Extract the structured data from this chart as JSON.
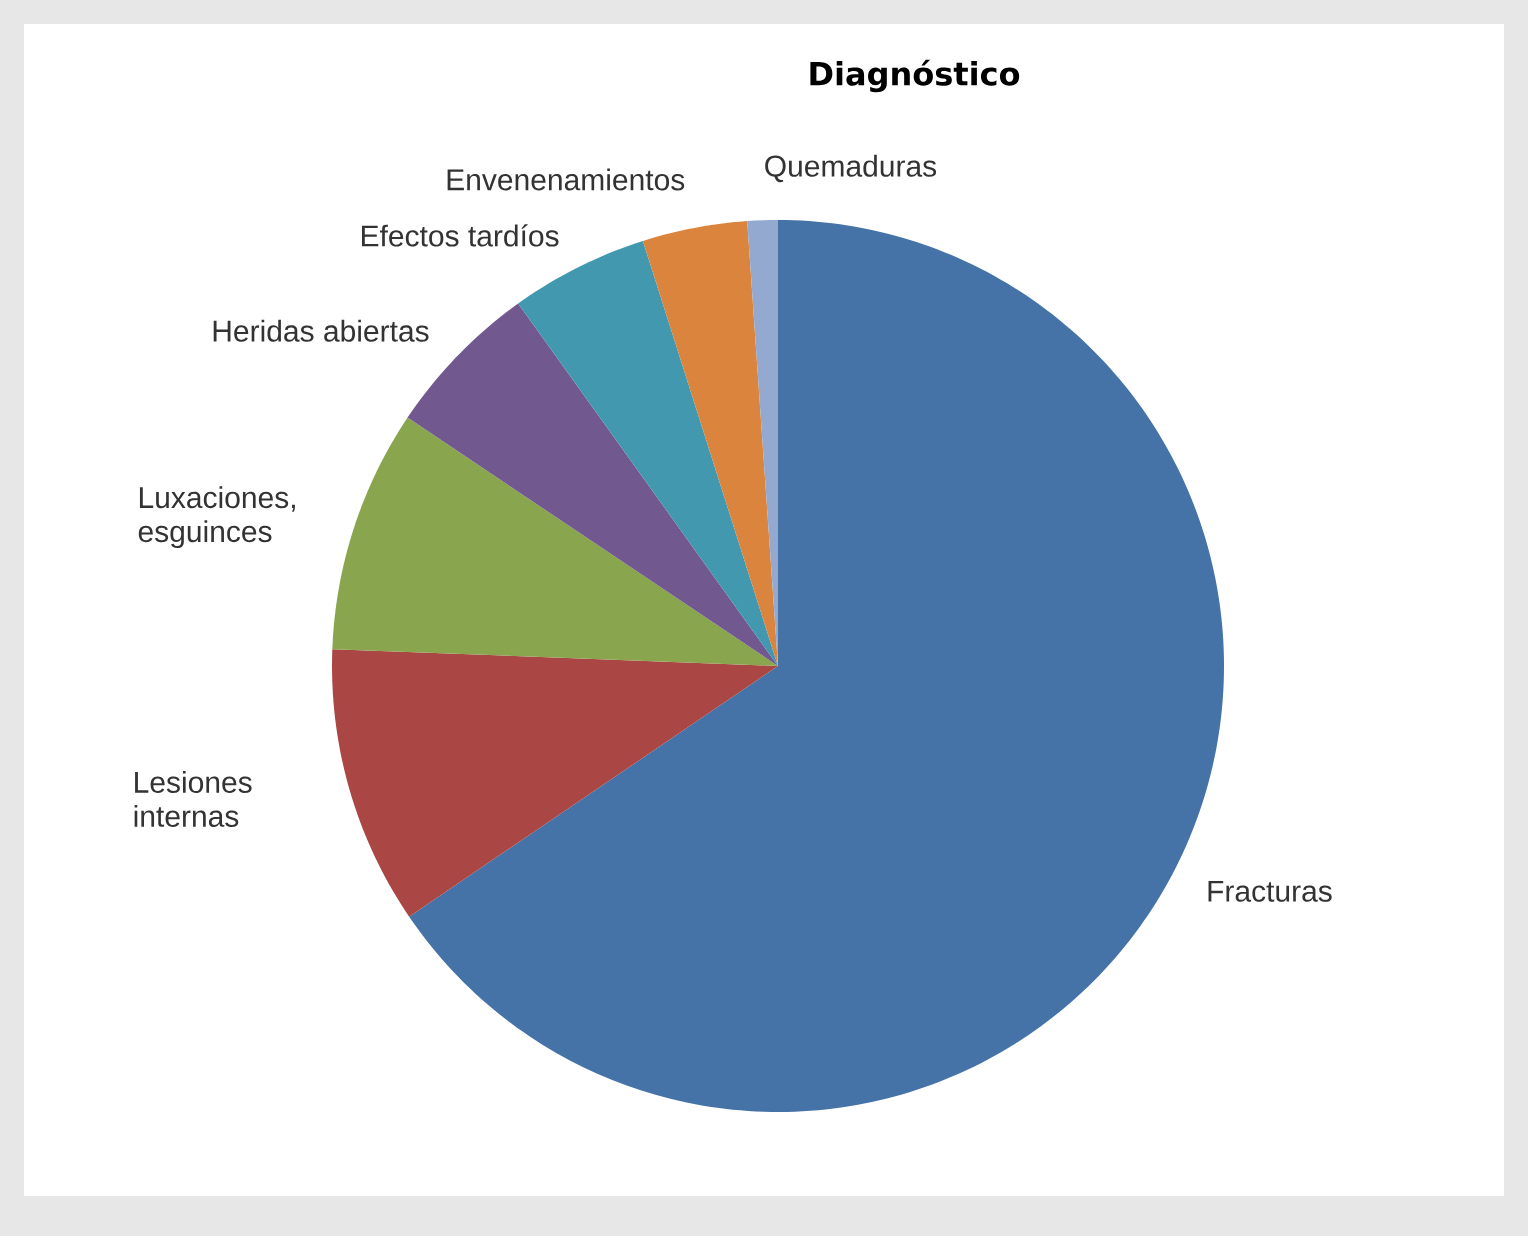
{
  "chart_data": {
    "type": "pie",
    "title": "Diagnóstico",
    "categories": [
      "Fracturas",
      "Lesiones internas",
      "Luxaciones, esguinces",
      "Heridas abiertas",
      "Efectos tardíos",
      "Envenenamientos",
      "Quemaduras"
    ],
    "values": [
      65.5,
      10.1,
      8.8,
      5.7,
      5.0,
      3.8,
      1.1
    ],
    "colors": [
      "#4572a7",
      "#aa4643",
      "#89a54e",
      "#71588f",
      "#4198af",
      "#db843d",
      "#93a9cf"
    ]
  }
}
